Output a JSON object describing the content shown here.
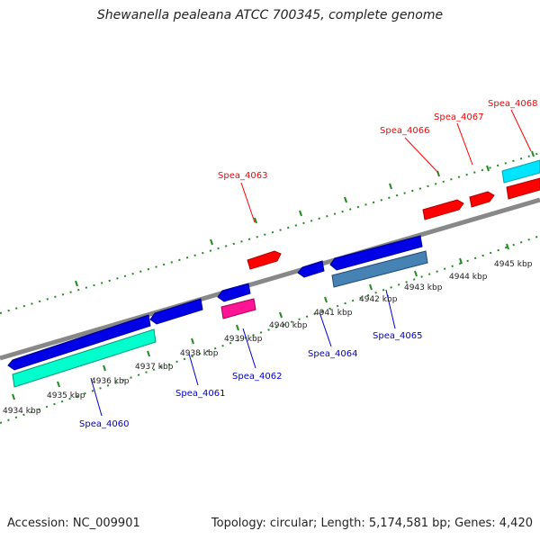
{
  "title": "Shewanella pealeana ATCC 700345, complete genome",
  "footer": {
    "accession": "Accession: NC_009901",
    "summary": "Topology: circular; Length: 5,174,581 bp; Genes: 4,420"
  },
  "ticks": [
    "4934 kbp",
    "4935 kbp",
    "4936 kbp",
    "4937 kbp",
    "4938 kbp",
    "4939 kbp",
    "4940 kbp",
    "4941 kbp",
    "4942 kbp",
    "4943 kbp",
    "4944 kbp",
    "4945 kbp"
  ],
  "labels": {
    "forward": [
      "Spea_4063",
      "Spea_4066",
      "Spea_4067",
      "Spea_4068"
    ],
    "reverse": [
      "Spea_4060",
      "Spea_4061",
      "Spea_4062",
      "Spea_4064",
      "Spea_4065"
    ]
  },
  "colors": {
    "backbone": "#808080",
    "tick": "#228B22",
    "forward_gene": "#ff0000",
    "reverse_gene": "#0000e6",
    "rrna": "#00ffcc",
    "trna": "#ff1493",
    "cds_steel": "#4682b4",
    "cyan_feature": "#00e5ff",
    "forward_label": "#ff0000",
    "reverse_label": "#0000cc"
  }
}
